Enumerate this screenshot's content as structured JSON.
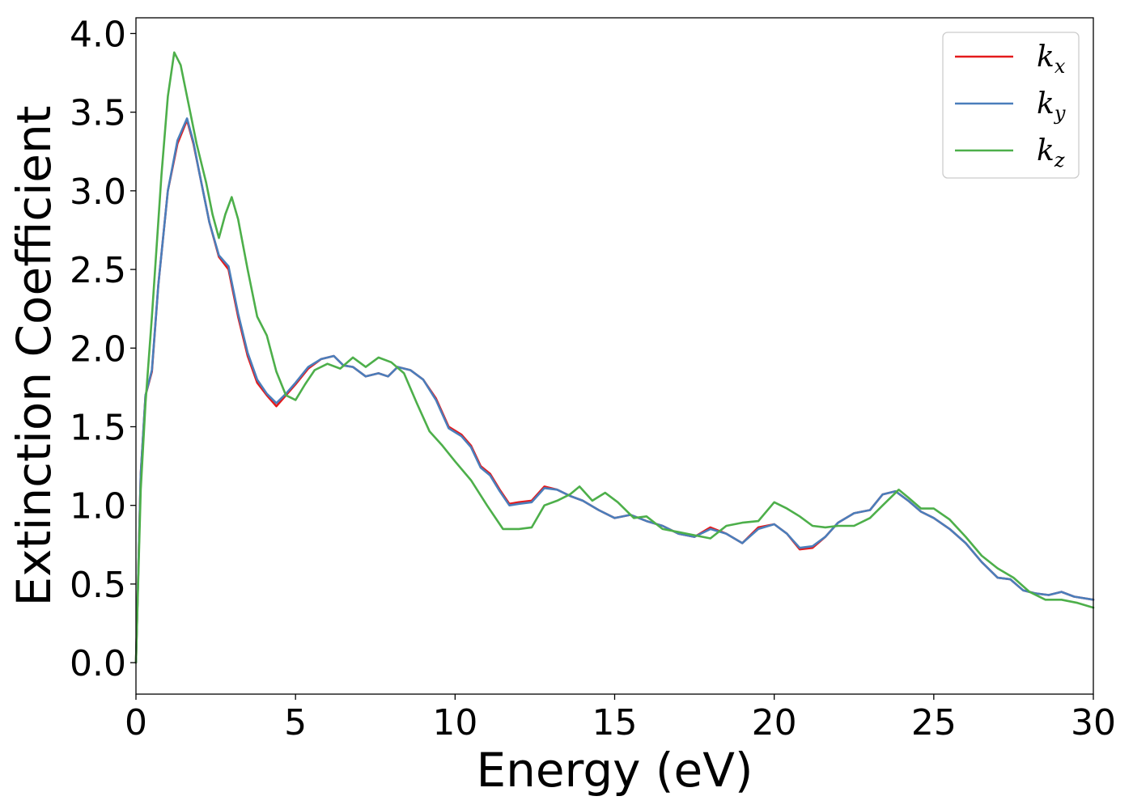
{
  "chart_data": {
    "type": "line",
    "title": "",
    "xlabel": "Energy (eV)",
    "ylabel": "Extinction Coefficient",
    "xlim": [
      0,
      30
    ],
    "ylim": [
      -0.2,
      4.1
    ],
    "xticks": [
      0,
      5,
      10,
      15,
      20,
      25,
      30
    ],
    "xtick_labels": [
      "0",
      "5",
      "10",
      "15",
      "20",
      "25",
      "30"
    ],
    "yticks": [
      0.0,
      0.5,
      1.0,
      1.5,
      2.0,
      2.5,
      3.0,
      3.5,
      4.0
    ],
    "ytick_labels": [
      "0.0",
      "0.5",
      "1.0",
      "1.5",
      "2.0",
      "2.5",
      "3.0",
      "3.5",
      "4.0"
    ],
    "grid": false,
    "legend_position": "top-right",
    "series": [
      {
        "name": "k_x",
        "legend_base": "k",
        "legend_sub": "x",
        "color": "#e41a1c",
        "points": [
          [
            0.0,
            0.0
          ],
          [
            0.15,
            1.2
          ],
          [
            0.3,
            1.7
          ],
          [
            0.5,
            1.85
          ],
          [
            0.7,
            2.4
          ],
          [
            1.0,
            3.0
          ],
          [
            1.3,
            3.3
          ],
          [
            1.6,
            3.45
          ],
          [
            1.8,
            3.3
          ],
          [
            2.0,
            3.1
          ],
          [
            2.3,
            2.8
          ],
          [
            2.6,
            2.58
          ],
          [
            2.9,
            2.5
          ],
          [
            3.2,
            2.2
          ],
          [
            3.5,
            1.95
          ],
          [
            3.8,
            1.78
          ],
          [
            4.1,
            1.7
          ],
          [
            4.4,
            1.63
          ],
          [
            4.7,
            1.7
          ],
          [
            5.0,
            1.77
          ],
          [
            5.4,
            1.87
          ],
          [
            5.8,
            1.93
          ],
          [
            6.2,
            1.95
          ],
          [
            6.5,
            1.89
          ],
          [
            6.8,
            1.88
          ],
          [
            7.2,
            1.82
          ],
          [
            7.6,
            1.84
          ],
          [
            7.9,
            1.82
          ],
          [
            8.2,
            1.88
          ],
          [
            8.6,
            1.86
          ],
          [
            9.0,
            1.8
          ],
          [
            9.4,
            1.68
          ],
          [
            9.8,
            1.5
          ],
          [
            10.2,
            1.45
          ],
          [
            10.5,
            1.38
          ],
          [
            10.8,
            1.25
          ],
          [
            11.1,
            1.2
          ],
          [
            11.4,
            1.1
          ],
          [
            11.7,
            1.01
          ],
          [
            12.0,
            1.02
          ],
          [
            12.4,
            1.03
          ],
          [
            12.8,
            1.12
          ],
          [
            13.2,
            1.1
          ],
          [
            13.6,
            1.06
          ],
          [
            14.0,
            1.03
          ],
          [
            14.5,
            0.97
          ],
          [
            15.0,
            0.92
          ],
          [
            15.5,
            0.94
          ],
          [
            16.0,
            0.9
          ],
          [
            16.5,
            0.87
          ],
          [
            17.0,
            0.82
          ],
          [
            17.5,
            0.8
          ],
          [
            18.0,
            0.86
          ],
          [
            18.5,
            0.82
          ],
          [
            19.0,
            0.76
          ],
          [
            19.5,
            0.86
          ],
          [
            20.0,
            0.88
          ],
          [
            20.4,
            0.82
          ],
          [
            20.8,
            0.72
          ],
          [
            21.2,
            0.73
          ],
          [
            21.6,
            0.8
          ],
          [
            22.0,
            0.89
          ],
          [
            22.5,
            0.95
          ],
          [
            23.0,
            0.97
          ],
          [
            23.4,
            1.07
          ],
          [
            23.8,
            1.09
          ],
          [
            24.2,
            1.03
          ],
          [
            24.6,
            0.96
          ],
          [
            25.0,
            0.92
          ],
          [
            25.5,
            0.85
          ],
          [
            26.0,
            0.76
          ],
          [
            26.5,
            0.64
          ],
          [
            27.0,
            0.54
          ],
          [
            27.4,
            0.53
          ],
          [
            27.8,
            0.46
          ],
          [
            28.2,
            0.44
          ],
          [
            28.6,
            0.43
          ],
          [
            29.0,
            0.45
          ],
          [
            29.4,
            0.42
          ],
          [
            30.0,
            0.4
          ]
        ]
      },
      {
        "name": "k_y",
        "legend_base": "k",
        "legend_sub": "y",
        "color": "#4a7ebb",
        "points": [
          [
            0.0,
            0.0
          ],
          [
            0.15,
            1.2
          ],
          [
            0.3,
            1.7
          ],
          [
            0.5,
            1.86
          ],
          [
            0.7,
            2.4
          ],
          [
            1.0,
            3.0
          ],
          [
            1.3,
            3.32
          ],
          [
            1.6,
            3.46
          ],
          [
            1.8,
            3.31
          ],
          [
            2.0,
            3.1
          ],
          [
            2.3,
            2.8
          ],
          [
            2.6,
            2.59
          ],
          [
            2.9,
            2.52
          ],
          [
            3.2,
            2.22
          ],
          [
            3.5,
            1.97
          ],
          [
            3.8,
            1.8
          ],
          [
            4.1,
            1.71
          ],
          [
            4.4,
            1.65
          ],
          [
            4.7,
            1.71
          ],
          [
            5.0,
            1.78
          ],
          [
            5.4,
            1.88
          ],
          [
            5.8,
            1.93
          ],
          [
            6.2,
            1.95
          ],
          [
            6.5,
            1.89
          ],
          [
            6.8,
            1.88
          ],
          [
            7.2,
            1.82
          ],
          [
            7.6,
            1.84
          ],
          [
            7.9,
            1.82
          ],
          [
            8.2,
            1.88
          ],
          [
            8.6,
            1.86
          ],
          [
            9.0,
            1.8
          ],
          [
            9.4,
            1.67
          ],
          [
            9.8,
            1.49
          ],
          [
            10.2,
            1.44
          ],
          [
            10.5,
            1.37
          ],
          [
            10.8,
            1.24
          ],
          [
            11.1,
            1.19
          ],
          [
            11.4,
            1.09
          ],
          [
            11.7,
            1.0
          ],
          [
            12.0,
            1.01
          ],
          [
            12.4,
            1.02
          ],
          [
            12.8,
            1.11
          ],
          [
            13.2,
            1.1
          ],
          [
            13.6,
            1.06
          ],
          [
            14.0,
            1.03
          ],
          [
            14.5,
            0.97
          ],
          [
            15.0,
            0.92
          ],
          [
            15.5,
            0.94
          ],
          [
            16.0,
            0.9
          ],
          [
            16.5,
            0.87
          ],
          [
            17.0,
            0.82
          ],
          [
            17.5,
            0.8
          ],
          [
            18.0,
            0.85
          ],
          [
            18.5,
            0.82
          ],
          [
            19.0,
            0.76
          ],
          [
            19.5,
            0.85
          ],
          [
            20.0,
            0.88
          ],
          [
            20.4,
            0.82
          ],
          [
            20.8,
            0.73
          ],
          [
            21.2,
            0.74
          ],
          [
            21.6,
            0.8
          ],
          [
            22.0,
            0.89
          ],
          [
            22.5,
            0.95
          ],
          [
            23.0,
            0.97
          ],
          [
            23.4,
            1.07
          ],
          [
            23.8,
            1.09
          ],
          [
            24.2,
            1.03
          ],
          [
            24.6,
            0.96
          ],
          [
            25.0,
            0.92
          ],
          [
            25.5,
            0.85
          ],
          [
            26.0,
            0.76
          ],
          [
            26.5,
            0.64
          ],
          [
            27.0,
            0.54
          ],
          [
            27.4,
            0.53
          ],
          [
            27.8,
            0.46
          ],
          [
            28.2,
            0.44
          ],
          [
            28.6,
            0.43
          ],
          [
            29.0,
            0.45
          ],
          [
            29.4,
            0.42
          ],
          [
            30.0,
            0.4
          ]
        ]
      },
      {
        "name": "k_z",
        "legend_base": "k",
        "legend_sub": "z",
        "color": "#4daf4a",
        "points": [
          [
            0.0,
            0.0
          ],
          [
            0.15,
            1.1
          ],
          [
            0.3,
            1.65
          ],
          [
            0.5,
            2.2
          ],
          [
            0.8,
            3.1
          ],
          [
            1.0,
            3.6
          ],
          [
            1.2,
            3.88
          ],
          [
            1.4,
            3.8
          ],
          [
            1.6,
            3.6
          ],
          [
            1.9,
            3.3
          ],
          [
            2.2,
            3.05
          ],
          [
            2.4,
            2.85
          ],
          [
            2.6,
            2.7
          ],
          [
            2.8,
            2.85
          ],
          [
            3.0,
            2.96
          ],
          [
            3.2,
            2.82
          ],
          [
            3.5,
            2.5
          ],
          [
            3.8,
            2.2
          ],
          [
            4.1,
            2.08
          ],
          [
            4.4,
            1.85
          ],
          [
            4.7,
            1.7
          ],
          [
            5.0,
            1.67
          ],
          [
            5.3,
            1.77
          ],
          [
            5.6,
            1.86
          ],
          [
            6.0,
            1.9
          ],
          [
            6.4,
            1.87
          ],
          [
            6.8,
            1.94
          ],
          [
            7.2,
            1.88
          ],
          [
            7.6,
            1.94
          ],
          [
            8.0,
            1.91
          ],
          [
            8.4,
            1.84
          ],
          [
            8.8,
            1.65
          ],
          [
            9.2,
            1.47
          ],
          [
            9.6,
            1.38
          ],
          [
            10.0,
            1.28
          ],
          [
            10.5,
            1.16
          ],
          [
            11.0,
            1.0
          ],
          [
            11.5,
            0.85
          ],
          [
            12.0,
            0.85
          ],
          [
            12.4,
            0.86
          ],
          [
            12.8,
            1.0
          ],
          [
            13.2,
            1.03
          ],
          [
            13.6,
            1.07
          ],
          [
            13.9,
            1.12
          ],
          [
            14.3,
            1.03
          ],
          [
            14.7,
            1.08
          ],
          [
            15.1,
            1.02
          ],
          [
            15.6,
            0.92
          ],
          [
            16.0,
            0.93
          ],
          [
            16.5,
            0.85
          ],
          [
            17.0,
            0.83
          ],
          [
            17.5,
            0.81
          ],
          [
            18.0,
            0.79
          ],
          [
            18.5,
            0.87
          ],
          [
            19.0,
            0.89
          ],
          [
            19.5,
            0.9
          ],
          [
            20.0,
            1.02
          ],
          [
            20.4,
            0.98
          ],
          [
            20.8,
            0.93
          ],
          [
            21.2,
            0.87
          ],
          [
            21.6,
            0.86
          ],
          [
            22.0,
            0.87
          ],
          [
            22.5,
            0.87
          ],
          [
            23.0,
            0.92
          ],
          [
            23.4,
            1.0
          ],
          [
            23.9,
            1.1
          ],
          [
            24.2,
            1.05
          ],
          [
            24.6,
            0.98
          ],
          [
            25.0,
            0.98
          ],
          [
            25.5,
            0.91
          ],
          [
            26.0,
            0.8
          ],
          [
            26.5,
            0.68
          ],
          [
            27.0,
            0.6
          ],
          [
            27.5,
            0.54
          ],
          [
            28.0,
            0.45
          ],
          [
            28.5,
            0.4
          ],
          [
            29.0,
            0.4
          ],
          [
            29.5,
            0.38
          ],
          [
            30.0,
            0.35
          ]
        ]
      }
    ]
  }
}
